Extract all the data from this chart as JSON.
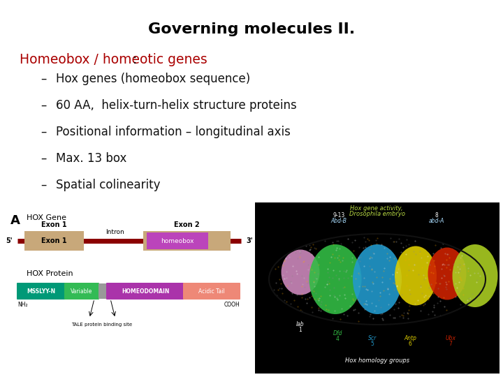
{
  "title": "Governing molecules II.",
  "title_fontsize": 16,
  "bg_color": "#ffffff",
  "heading_text": "Homeobox / homeotic genes",
  "heading_color_red": "#aa0000",
  "heading_colon": ":",
  "heading_colon_color": "#000000",
  "heading_fontsize": 13.5,
  "bullet_items": [
    "Hox genes (homeobox sequence)",
    "60 AA,  helix-turn-helix structure proteins",
    "Positional information – longitudinal axis",
    "Max. 13 box",
    "Spatial colinearity"
  ],
  "bullet_fontsize": 12,
  "bullet_color": "#111111",
  "bullet_dash": "–",
  "gene_line_color": "#8b0000",
  "exon_color": "#c8a87a",
  "homeobox_color": "#bb44bb",
  "msslyyn_color": "#009977",
  "variable_color": "#33bb55",
  "linker_color": "#999999",
  "homeodomain_color": "#aa33aa",
  "acidic_tail_color": "#ee8877",
  "drosophila_bg": "#000000",
  "lab_color": "#cc88bb",
  "dfd_color": "#33bb44",
  "scr_color": "#2299cc",
  "antp_color": "#ddcc00",
  "ubx_color": "#cc2200",
  "end_color": "#aacc22",
  "label_color_green": "#bbdd44",
  "label_color_cyan": "#aaddff"
}
